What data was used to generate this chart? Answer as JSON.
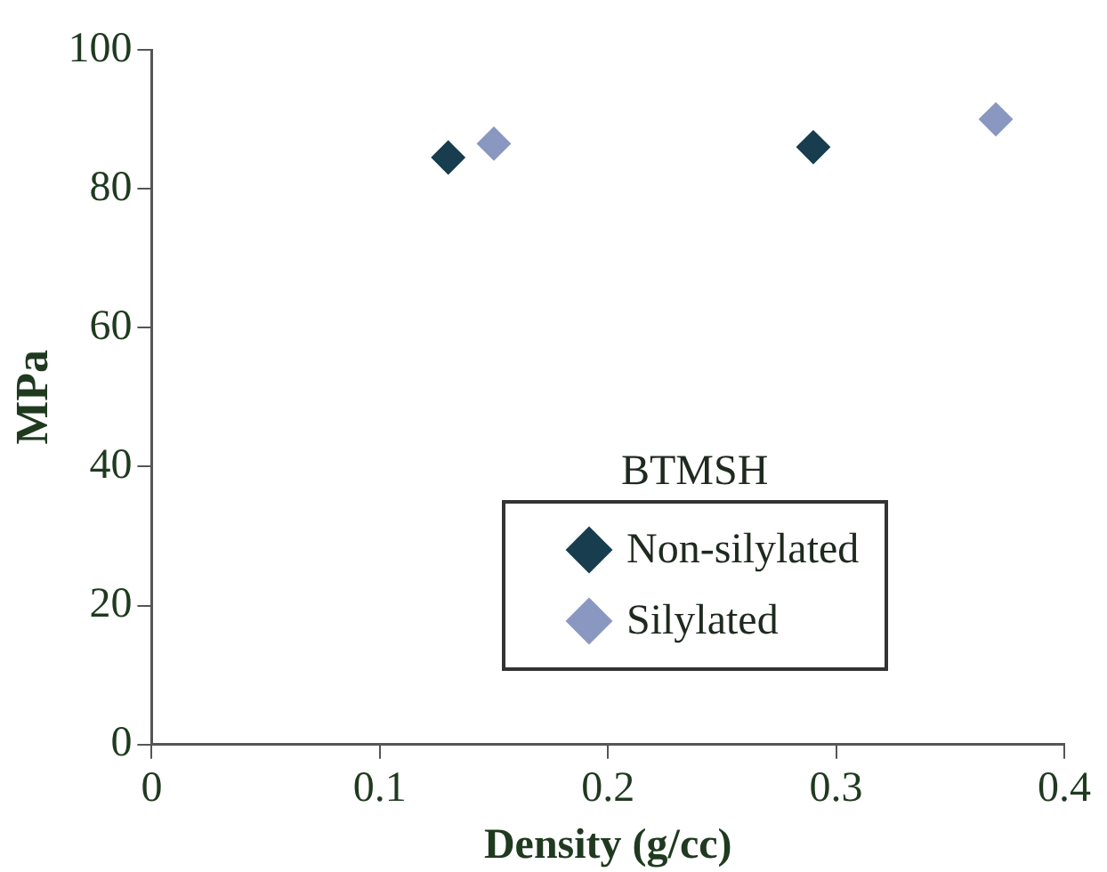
{
  "chart_data": {
    "type": "scatter",
    "xlabel": "Density (g/cc)",
    "ylabel": "MPa",
    "legend_title": "BTMSH",
    "xlim": [
      0,
      0.4
    ],
    "xticks": [
      0,
      0.1,
      0.2,
      0.3,
      0.4
    ],
    "ylim": [
      0,
      100
    ],
    "yticks": [
      0,
      20,
      40,
      60,
      80,
      100
    ],
    "grid": false,
    "legend": "bottom right",
    "marker": "diamond",
    "series": [
      {
        "name": "Non-silylated",
        "color": "#173d4f",
        "x": [
          0.13,
          0.29
        ],
        "values": [
          84.5,
          86
        ]
      },
      {
        "name": "Silylated",
        "color": "#8a97c0",
        "x": [
          0.15,
          0.37
        ],
        "values": [
          86.5,
          90
        ]
      }
    ]
  }
}
